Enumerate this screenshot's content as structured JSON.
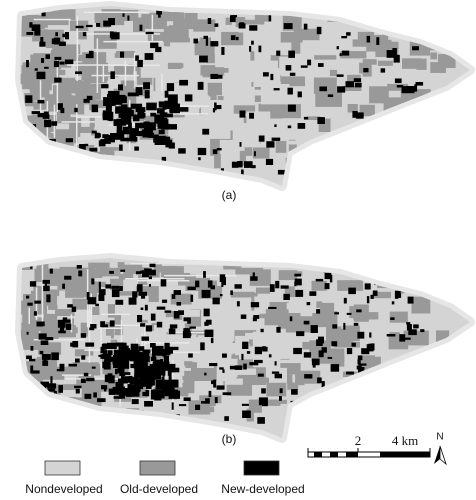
{
  "maps": [
    {
      "label": "(a)"
    },
    {
      "label": "(b)"
    }
  ],
  "scale_bar": {
    "labels": [
      "2",
      "4 km"
    ]
  },
  "north_arrow": {
    "label": "N"
  },
  "legend": {
    "items": [
      {
        "label": "Nondeveloped"
      },
      {
        "label": "Old-developed"
      },
      {
        "label": "New-developed"
      }
    ]
  }
}
